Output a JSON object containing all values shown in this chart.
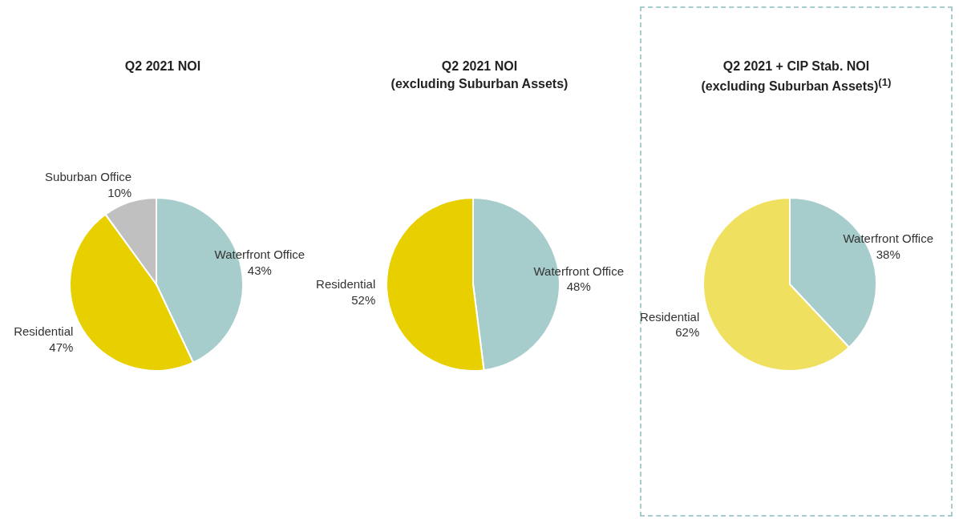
{
  "chart_data": [
    {
      "type": "pie",
      "title": "Q2 2021 NOI",
      "categories": [
        "Waterfront Office",
        "Residential",
        "Suburban Office"
      ],
      "values": [
        43,
        47,
        10
      ],
      "value_labels": [
        "43%",
        "47%",
        "10%"
      ],
      "colors": [
        "#a6cdcc",
        "#e8cf00",
        "#c0c0c0"
      ]
    },
    {
      "type": "pie",
      "title": "Q2 2021 NOI\n(excluding Suburban Assets)",
      "categories": [
        "Waterfront Office",
        "Residential"
      ],
      "values": [
        48,
        52
      ],
      "value_labels": [
        "48%",
        "52%"
      ],
      "colors": [
        "#a6cdcc",
        "#e8cf00"
      ]
    },
    {
      "type": "pie",
      "title": "Q2 2021 + CIP Stab. NOI\n(excluding Suburban Assets)$^{(1)}$",
      "categories": [
        "Waterfront Office",
        "Residential"
      ],
      "values": [
        38,
        62
      ],
      "value_labels": [
        "38%",
        "62%"
      ],
      "colors": [
        "#a6cdcc",
        "#f0e060"
      ]
    }
  ]
}
